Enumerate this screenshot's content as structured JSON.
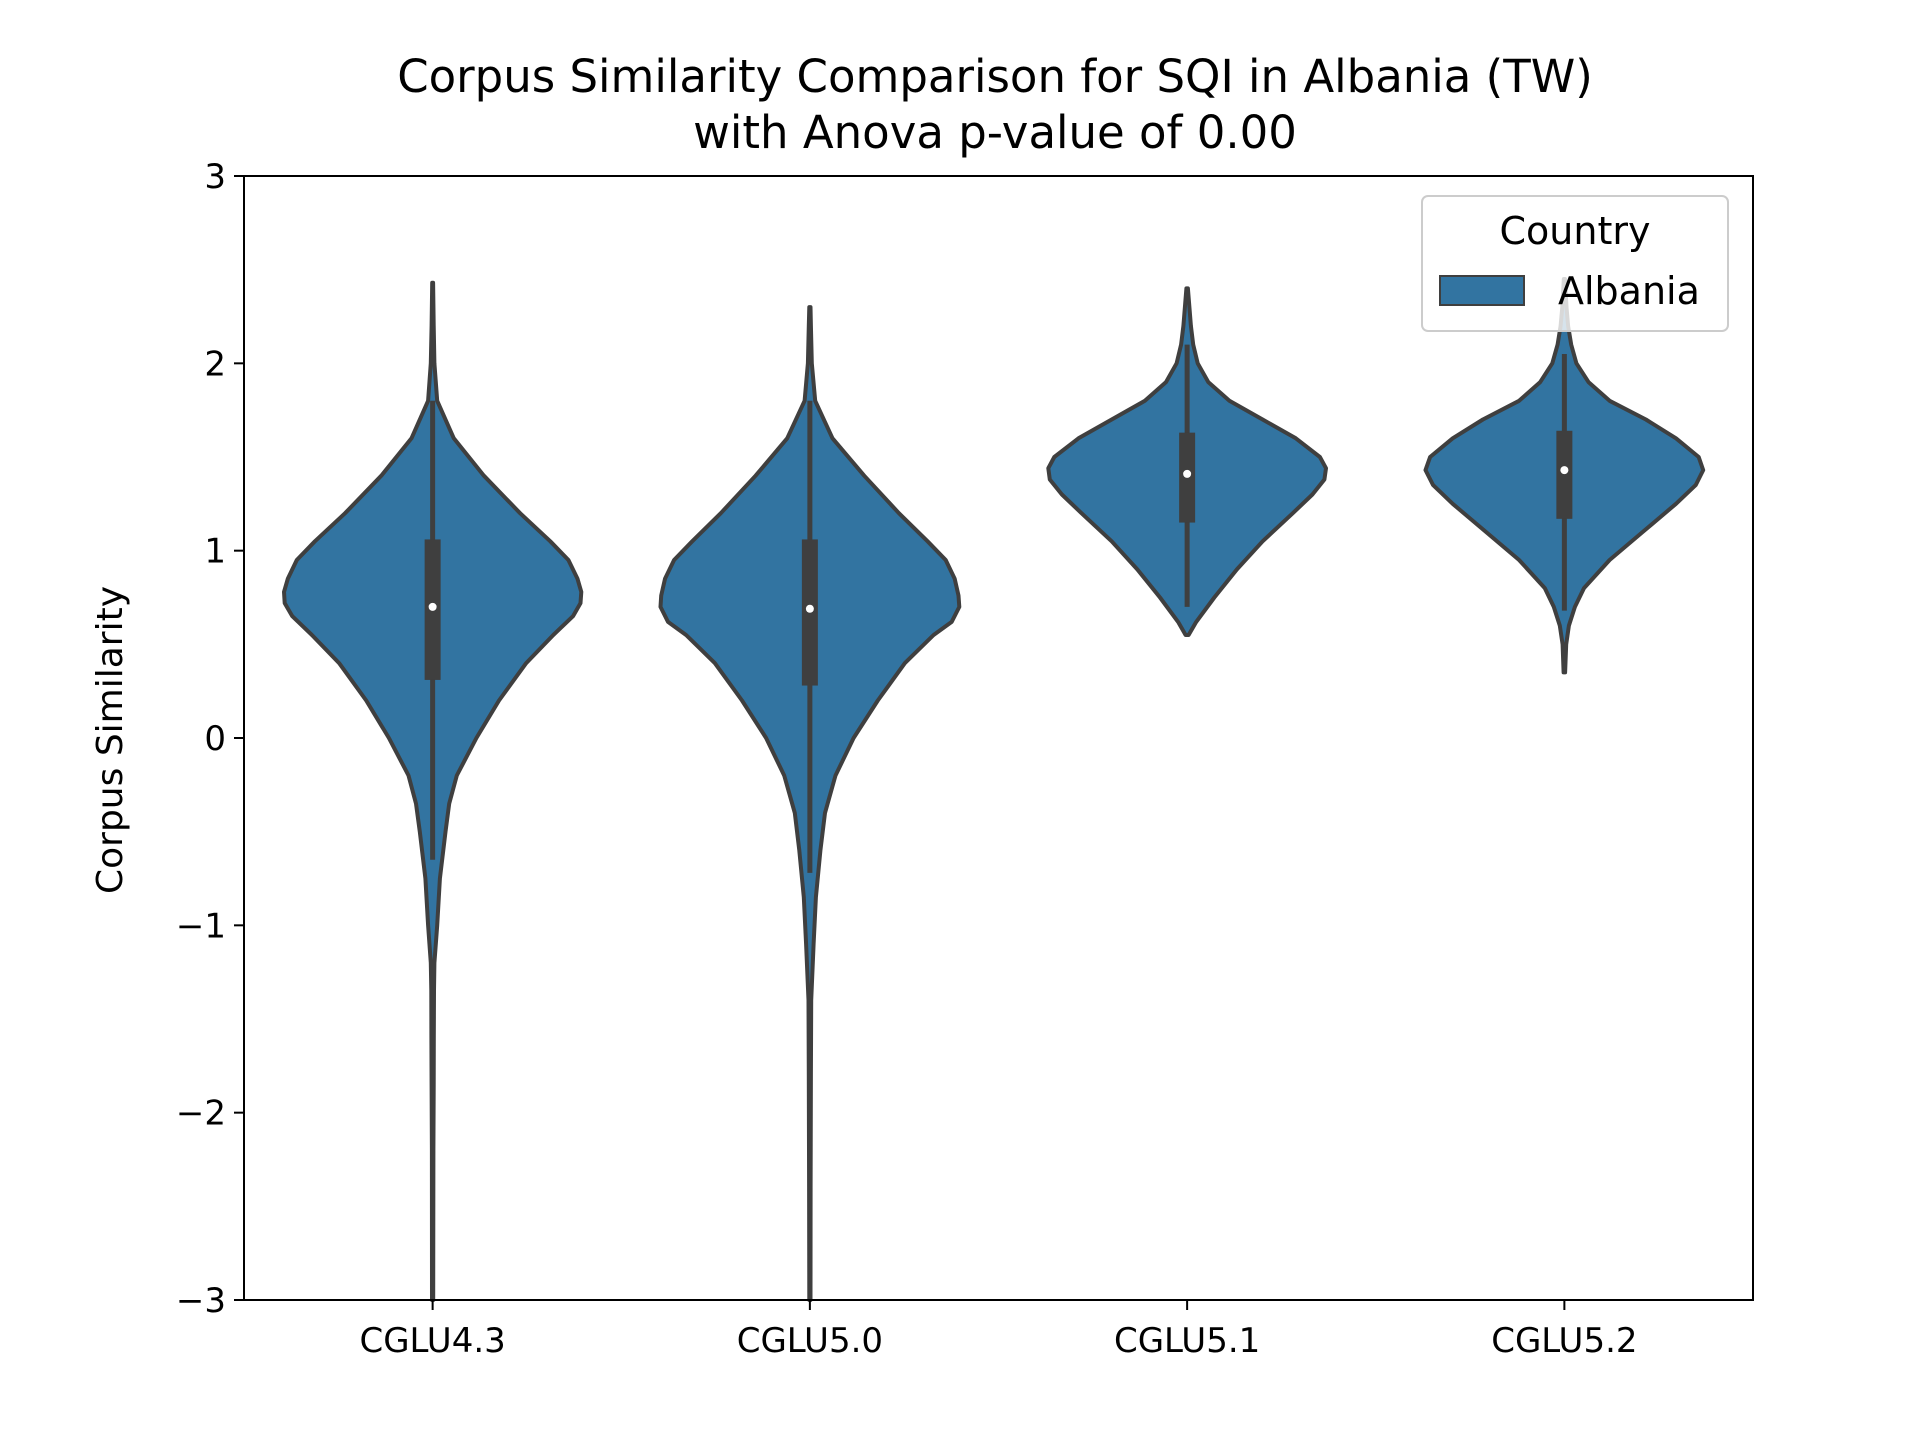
{
  "chart_data": {
    "type": "violin",
    "title": "Corpus Similarity Comparison for SQI in Albania (TW)",
    "subtitle": "with Anova p-value of 0.00",
    "xlabel": "",
    "ylabel": "Corpus Similarity",
    "ylim": [
      -3,
      3
    ],
    "yticks": [
      -3,
      -2,
      -1,
      0,
      1,
      2,
      3
    ],
    "ytick_labels": [
      "−3",
      "−2",
      "−1",
      "0",
      "1",
      "2",
      "3"
    ],
    "categories": [
      "CGLU4.3",
      "CGLU5.0",
      "CGLU5.1",
      "CGLU5.2"
    ],
    "grid": false,
    "legend": {
      "title": "Country",
      "placement": "top-right",
      "entries": [
        {
          "label": "Albania",
          "color": "#3274a1"
        }
      ]
    },
    "colors": {
      "fill": "#3274a1",
      "edge": "#3f3f3f",
      "median": "#ffffff"
    },
    "series": [
      {
        "name": "Albania",
        "violins": [
          {
            "category": "CGLU4.3",
            "min": -3.0,
            "max": 2.43,
            "q1": 0.31,
            "median": 0.7,
            "q3": 1.06,
            "whisker_low": -0.65,
            "whisker_high": 1.8,
            "profile": [
              [
                -3.0,
                0.004
              ],
              [
                -2.2,
                0.005
              ],
              [
                -1.85,
                0.007
              ],
              [
                -1.6,
                0.008
              ],
              [
                -1.35,
                0.009
              ],
              [
                -1.2,
                0.012
              ],
              [
                -1.0,
                0.03
              ],
              [
                -0.75,
                0.048
              ],
              [
                -0.5,
                0.085
              ],
              [
                -0.35,
                0.11
              ],
              [
                -0.2,
                0.16
              ],
              [
                0.0,
                0.29
              ],
              [
                0.2,
                0.44
              ],
              [
                0.4,
                0.62
              ],
              [
                0.55,
                0.8
              ],
              [
                0.65,
                0.93
              ],
              [
                0.72,
                0.98
              ],
              [
                0.78,
                0.985
              ],
              [
                0.85,
                0.96
              ],
              [
                0.95,
                0.9
              ],
              [
                1.05,
                0.78
              ],
              [
                1.2,
                0.58
              ],
              [
                1.4,
                0.34
              ],
              [
                1.6,
                0.14
              ],
              [
                1.8,
                0.03
              ],
              [
                2.0,
                0.012
              ],
              [
                2.2,
                0.007
              ],
              [
                2.43,
                0.003
              ]
            ]
          },
          {
            "category": "CGLU5.0",
            "min": -3.0,
            "max": 2.3,
            "q1": 0.28,
            "median": 0.69,
            "q3": 1.06,
            "whisker_low": -0.72,
            "whisker_high": 1.8,
            "profile": [
              [
                -3.0,
                0.004
              ],
              [
                -2.4,
                0.005
              ],
              [
                -1.8,
                0.007
              ],
              [
                -1.4,
                0.009
              ],
              [
                -1.1,
                0.025
              ],
              [
                -0.85,
                0.04
              ],
              [
                -0.6,
                0.07
              ],
              [
                -0.4,
                0.1
              ],
              [
                -0.2,
                0.17
              ],
              [
                0.0,
                0.29
              ],
              [
                0.2,
                0.45
              ],
              [
                0.4,
                0.63
              ],
              [
                0.55,
                0.82
              ],
              [
                0.62,
                0.94
              ],
              [
                0.7,
                0.99
              ],
              [
                0.76,
                0.985
              ],
              [
                0.85,
                0.96
              ],
              [
                0.95,
                0.9
              ],
              [
                1.05,
                0.78
              ],
              [
                1.2,
                0.59
              ],
              [
                1.4,
                0.36
              ],
              [
                1.6,
                0.15
              ],
              [
                1.8,
                0.035
              ],
              [
                2.0,
                0.013
              ],
              [
                2.2,
                0.007
              ],
              [
                2.3,
                0.004
              ]
            ]
          },
          {
            "category": "CGLU5.1",
            "min": 0.55,
            "max": 2.4,
            "q1": 1.15,
            "median": 1.41,
            "q3": 1.63,
            "whisker_low": 0.7,
            "whisker_high": 2.1,
            "profile": [
              [
                0.55,
                0.01
              ],
              [
                0.62,
                0.06
              ],
              [
                0.75,
                0.18
              ],
              [
                0.9,
                0.33
              ],
              [
                1.05,
                0.5
              ],
              [
                1.2,
                0.7
              ],
              [
                1.3,
                0.83
              ],
              [
                1.38,
                0.91
              ],
              [
                1.44,
                0.92
              ],
              [
                1.5,
                0.88
              ],
              [
                1.6,
                0.72
              ],
              [
                1.7,
                0.5
              ],
              [
                1.8,
                0.28
              ],
              [
                1.9,
                0.14
              ],
              [
                2.0,
                0.07
              ],
              [
                2.1,
                0.04
              ],
              [
                2.2,
                0.025
              ],
              [
                2.3,
                0.015
              ],
              [
                2.4,
                0.005
              ]
            ]
          },
          {
            "category": "CGLU5.2",
            "min": 0.35,
            "max": 2.45,
            "q1": 1.17,
            "median": 1.43,
            "q3": 1.64,
            "whisker_low": 0.68,
            "whisker_high": 2.05,
            "profile": [
              [
                0.35,
                0.005
              ],
              [
                0.5,
                0.012
              ],
              [
                0.6,
                0.03
              ],
              [
                0.7,
                0.07
              ],
              [
                0.8,
                0.13
              ],
              [
                0.95,
                0.3
              ],
              [
                1.1,
                0.52
              ],
              [
                1.25,
                0.74
              ],
              [
                1.35,
                0.87
              ],
              [
                1.43,
                0.92
              ],
              [
                1.5,
                0.89
              ],
              [
                1.6,
                0.74
              ],
              [
                1.7,
                0.54
              ],
              [
                1.8,
                0.3
              ],
              [
                1.9,
                0.16
              ],
              [
                2.0,
                0.08
              ],
              [
                2.1,
                0.045
              ],
              [
                2.2,
                0.025
              ],
              [
                2.3,
                0.014
              ],
              [
                2.45,
                0.004
              ]
            ]
          }
        ]
      }
    ]
  }
}
